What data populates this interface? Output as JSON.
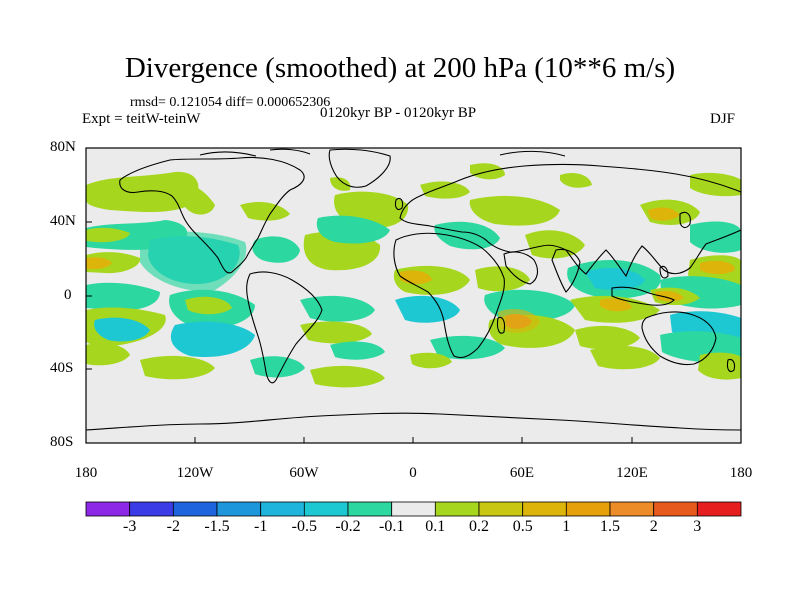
{
  "title": "Divergence (smoothed) at 200 hPa (10**6 m/s)",
  "stats": "rmsd= 0.121054 diff= 0.000652306",
  "experiment": "Expt = teitW-teinW",
  "period": "0120kyr BP - 0120kyr BP",
  "season": "DJF",
  "map": {
    "lat_labels": [
      "80N",
      "40N",
      "0",
      "40S",
      "80S"
    ],
    "lon_labels": [
      "180",
      "120W",
      "60W",
      "0",
      "60E",
      "120E",
      "180"
    ],
    "fill_colors": {
      "neutral": "#ebebeb",
      "pos_light": "#a6d71e",
      "pos_mid": "#dcb40a",
      "pos_strong": "#eb8c28",
      "neg_light": "#2dd7a0",
      "neg_mid": "#1ec8d2",
      "land_outline": "#000000"
    }
  },
  "colorbar": {
    "labels": [
      "-3",
      "-2",
      "-1.5",
      "-1",
      "-0.5",
      "-0.2",
      "-0.1",
      "0.1",
      "0.2",
      "0.5",
      "1",
      "1.5",
      "2",
      "3"
    ],
    "colors": [
      "#8c28e6",
      "#3c3ce6",
      "#1e64dc",
      "#1e96dc",
      "#1eb4dc",
      "#1ec8d2",
      "#2dd7a0",
      "#ebebeb",
      "#a6d71e",
      "#c8c814",
      "#dcb40a",
      "#e6a00a",
      "#eb8c28",
      "#e65a1e",
      "#e61e1e"
    ]
  }
}
